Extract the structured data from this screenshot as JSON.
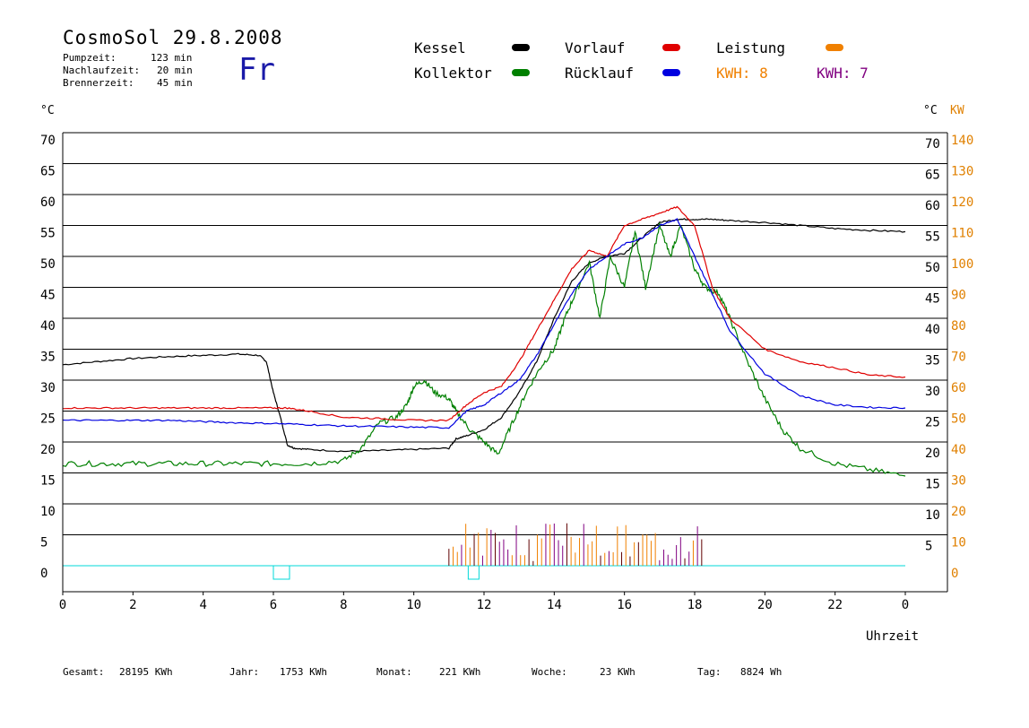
{
  "header": {
    "title": "CosmoSol 29.8.2008",
    "info": [
      {
        "label": "Pumpzeit:",
        "value": "123 min"
      },
      {
        "label": "Nachlaufzeit:",
        "value": "20 min"
      },
      {
        "label": "Brennerzeit:",
        "value": "45 min"
      }
    ],
    "day": "Fr"
  },
  "legend": {
    "kessel": {
      "label": "Kessel",
      "color": "#000000"
    },
    "kollektor": {
      "label": "Kollektor",
      "color": "#008000"
    },
    "vorlauf": {
      "label": "Vorlauf",
      "color": "#e00000"
    },
    "ruecklauf": {
      "label": "Rücklauf",
      "color": "#0000e0"
    },
    "leistung": {
      "label": "Leistung",
      "color": "#f08000"
    },
    "kwh1": {
      "label": "KWH: 8",
      "color": "#f08000"
    },
    "kwh2": {
      "label": "KWH: 7",
      "color": "#800080"
    }
  },
  "stats": [
    {
      "label": "Gesamt:",
      "value": "28195 KWh"
    },
    {
      "label": "Jahr:",
      "value": "1753 KWh"
    },
    {
      "label": "Monat:",
      "value": "221 KWh"
    },
    {
      "label": "Woche:",
      "value": "23 KWh"
    },
    {
      "label": "Tag:",
      "value": "8824 Wh"
    }
  ],
  "chart_data": {
    "type": "line",
    "xlabel": "Uhrzeit",
    "ylabel_left": "°C",
    "ylabel_right": "°C",
    "ylabel_right2": "KW",
    "x_ticks": [
      "0",
      "2",
      "4",
      "6",
      "8",
      "10",
      "12",
      "14",
      "16",
      "18",
      "20",
      "22",
      "0"
    ],
    "y_ticks_left": [
      "0",
      "5",
      "10",
      "15",
      "20",
      "25",
      "30",
      "35",
      "40",
      "45",
      "50",
      "55",
      "60",
      "65",
      "70"
    ],
    "y_ticks_right": [
      "5",
      "10",
      "15",
      "20",
      "25",
      "30",
      "35",
      "40",
      "45",
      "50",
      "55",
      "60",
      "65",
      "70"
    ],
    "y_ticks_kw": [
      "0",
      "10",
      "20",
      "30",
      "40",
      "50",
      "60",
      "70",
      "80",
      "90",
      "100",
      "110",
      "120",
      "130",
      "140"
    ],
    "xlim": [
      0,
      24
    ],
    "ylim": [
      -2,
      72
    ],
    "grid": "horizontal",
    "series": [
      {
        "name": "Kessel",
        "color": "#000000",
        "x": [
          0,
          1,
          2,
          3,
          4,
          5,
          5.6,
          5.8,
          6.0,
          6.2,
          6.4,
          6.6,
          7,
          8,
          9,
          10,
          11,
          11.2,
          11.5,
          12,
          12.5,
          13,
          13.5,
          14,
          14.5,
          15,
          15.5,
          16,
          16.5,
          17,
          17.5,
          18,
          18.5,
          19,
          20,
          21,
          22,
          23,
          24
        ],
        "y": [
          32.5,
          33,
          33.5,
          33.8,
          34,
          34.2,
          34,
          33,
          28,
          24,
          19.5,
          19,
          18.8,
          18.5,
          18.6,
          18.8,
          19,
          20.5,
          21,
          22,
          24,
          28,
          33,
          40,
          46,
          49,
          50,
          50.5,
          53,
          55.5,
          56,
          56,
          56,
          55.8,
          55.5,
          55,
          54.5,
          54.2,
          54
        ]
      },
      {
        "name": "Kollektor",
        "color": "#008000",
        "x": [
          0,
          1,
          2,
          3,
          4,
          5,
          6,
          7,
          8,
          8.5,
          9,
          9.5,
          9.8,
          10,
          10.3,
          10.6,
          11,
          11.2,
          11.6,
          12,
          12.4,
          12.8,
          13.2,
          13.6,
          14,
          14.3,
          14.6,
          15,
          15.3,
          15.6,
          16,
          16.3,
          16.6,
          17,
          17.3,
          17.6,
          18,
          18.3,
          18.7,
          19,
          19.5,
          20,
          20.5,
          21,
          22,
          23,
          24
        ],
        "y": [
          16.5,
          16.5,
          16.5,
          16.5,
          16.5,
          16.5,
          16.5,
          16.5,
          17,
          19,
          23,
          24,
          26,
          29,
          30,
          28,
          27,
          25,
          22,
          20,
          18,
          23,
          28,
          32,
          35,
          40,
          44,
          49,
          40,
          50,
          45,
          54,
          45,
          55,
          50,
          55,
          48,
          45,
          44,
          40,
          33,
          27,
          22,
          19,
          16.5,
          15.5,
          14.5
        ]
      },
      {
        "name": "Vorlauf",
        "color": "#e00000",
        "x": [
          0,
          1,
          2,
          3,
          4,
          5,
          6,
          6.4,
          7,
          8,
          9,
          10,
          11,
          11.5,
          12,
          12.5,
          13,
          13.5,
          14,
          14.5,
          15,
          15.5,
          16,
          16.5,
          17,
          17.5,
          18,
          18.5,
          19,
          20,
          21,
          22,
          23,
          24
        ],
        "y": [
          25.5,
          25.5,
          25.5,
          25.5,
          25.5,
          25.5,
          25.5,
          25.5,
          25,
          24,
          23.8,
          23.5,
          23.5,
          26,
          28,
          29,
          33,
          38,
          43,
          48,
          51,
          50,
          55,
          56,
          57,
          58,
          55,
          45,
          40,
          35,
          33,
          32,
          30.8,
          30.5
        ]
      },
      {
        "name": "Rücklauf",
        "color": "#0000e0",
        "x": [
          0,
          1,
          2,
          3,
          4,
          5,
          6,
          7,
          8,
          9,
          10,
          11,
          11.5,
          12,
          12.5,
          13,
          13.5,
          14,
          14.5,
          15,
          15.5,
          16,
          16.5,
          17,
          17.5,
          18,
          18.5,
          19,
          20,
          21,
          22,
          23,
          24
        ],
        "y": [
          23.5,
          23.5,
          23.5,
          23.5,
          23.3,
          23.1,
          23,
          22.8,
          22.6,
          22.5,
          22.4,
          22.3,
          25,
          26,
          28,
          30,
          34,
          39,
          44,
          48,
          50,
          52,
          53,
          55,
          56,
          50,
          44,
          38,
          31,
          27.5,
          26,
          25.6,
          25.5
        ]
      }
    ]
  }
}
